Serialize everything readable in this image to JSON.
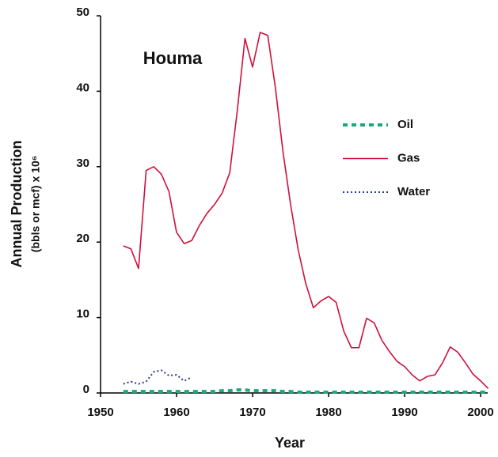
{
  "chart_data": {
    "type": "line",
    "title": "Houma",
    "xlabel": "Year",
    "ylabel": [
      "Annual Production",
      "(bbls or mcf) x 10⁶"
    ],
    "x": [
      1953,
      1954,
      1955,
      1956,
      1957,
      1958,
      1959,
      1960,
      1961,
      1962,
      1963,
      1964,
      1965,
      1966,
      1967,
      1968,
      1969,
      1970,
      1971,
      1972,
      1973,
      1974,
      1975,
      1976,
      1977,
      1978,
      1979,
      1980,
      1981,
      1982,
      1983,
      1984,
      1985,
      1986,
      1987,
      1988,
      1989,
      1990,
      1991,
      1992,
      1993,
      1994,
      1995,
      1996,
      1997,
      1998,
      1999,
      2000,
      2001
    ],
    "series": [
      {
        "name": "Oil",
        "color": "#1aaa7a",
        "dash": "6,5",
        "width": 4,
        "values": [
          0.2,
          0.2,
          0.2,
          0.2,
          0.2,
          0.2,
          0.2,
          0.2,
          0.2,
          0.2,
          0.2,
          0.2,
          0.2,
          0.3,
          0.3,
          0.4,
          0.4,
          0.3,
          0.3,
          0.3,
          0.3,
          0.2,
          0.2,
          0.1,
          0.1,
          0.1,
          0.1,
          0.1,
          0.1,
          0.1,
          0.1,
          0.1,
          0.1,
          0.1,
          0.1,
          0.1,
          0.1,
          0.1,
          0.1,
          0.1,
          0.1,
          0.1,
          0.1,
          0.1,
          0.1,
          0.1,
          0.1,
          0.1,
          0.1
        ]
      },
      {
        "name": "Gas",
        "color": "#d0103a",
        "dash": "",
        "width": 1.6,
        "values": [
          19.5,
          19.1,
          16.5,
          29.5,
          30,
          29,
          26.7,
          21.3,
          19.8,
          20.2,
          22.2,
          23.8,
          25,
          26.5,
          29.2,
          37.5,
          47,
          43.2,
          47.8,
          47.4,
          40.5,
          32,
          25,
          19,
          14.5,
          11.3,
          12.2,
          12.8,
          12,
          8.2,
          6,
          6,
          9.9,
          9.3,
          7,
          5.5,
          4.2,
          3.5,
          2.4,
          1.6,
          2.2,
          2.4,
          4,
          6.1,
          5.4,
          4,
          2.5,
          1.6,
          0.6
        ]
      },
      {
        "name": "Water",
        "color": "#2a3a8a",
        "dash": "2,3",
        "width": 2,
        "values": [
          1.2,
          1.5,
          1.2,
          1.5,
          2.8,
          3,
          2.3,
          2.4,
          1.6,
          2.1,
          null,
          null,
          null,
          null,
          null,
          null,
          null,
          null,
          null,
          null,
          null,
          null,
          null,
          null,
          null,
          null,
          null,
          null,
          null,
          null,
          null,
          null,
          null,
          null,
          null,
          null,
          null,
          null,
          null,
          null,
          null,
          null,
          null,
          null,
          null,
          null,
          null,
          null,
          null
        ]
      }
    ],
    "xlim": [
      1950,
      2001
    ],
    "xticks": [
      1950,
      1960,
      1970,
      1980,
      1990,
      2000
    ],
    "ylim": [
      0,
      50
    ],
    "yticks": [
      0,
      10,
      20,
      30,
      40,
      50
    ],
    "legend": "right"
  }
}
